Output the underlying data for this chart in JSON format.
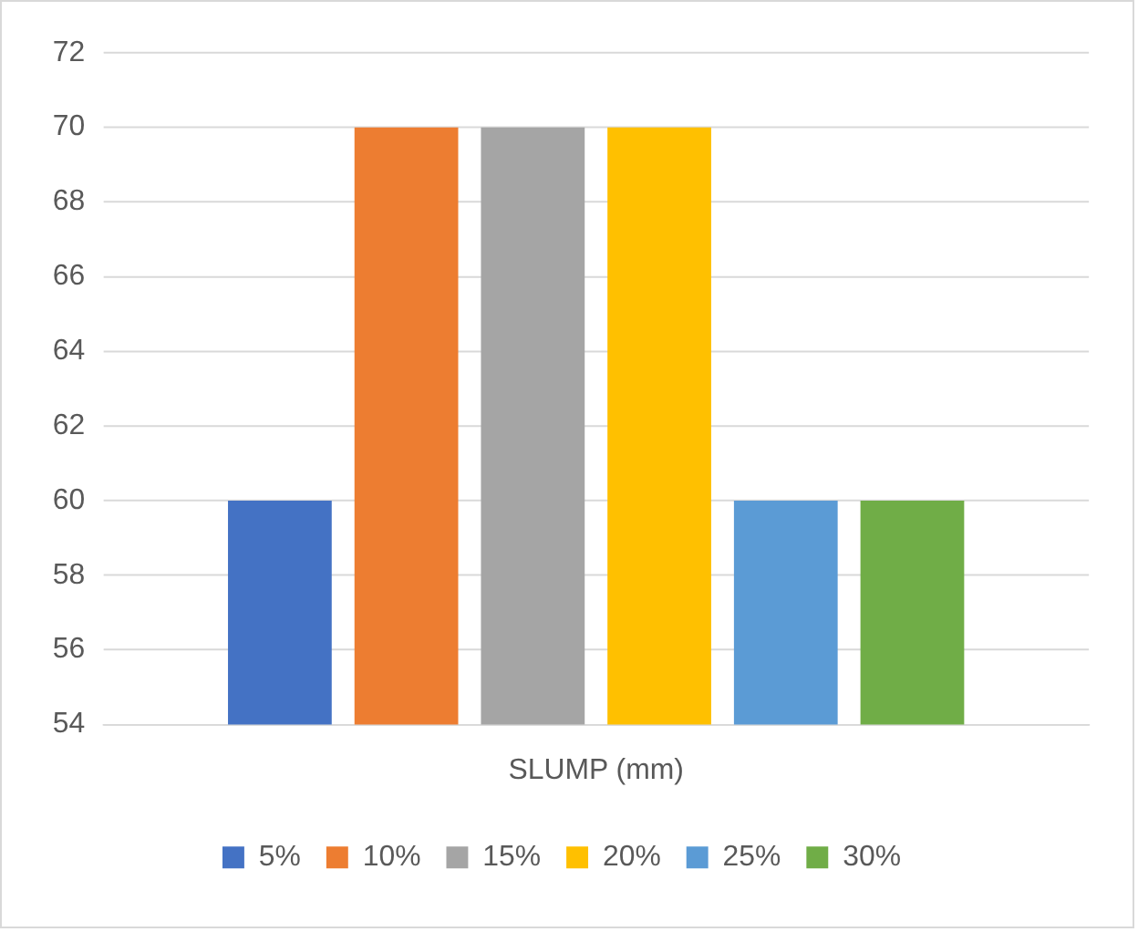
{
  "chart_data": {
    "type": "bar",
    "categories": [
      "SLUMP (mm)"
    ],
    "series": [
      {
        "name": "5%",
        "color": "#4472c4",
        "values": [
          60
        ]
      },
      {
        "name": "10%",
        "color": "#ed7d31",
        "values": [
          70
        ]
      },
      {
        "name": "15%",
        "color": "#a5a5a5",
        "values": [
          70
        ]
      },
      {
        "name": "20%",
        "color": "#ffc000",
        "values": [
          70
        ]
      },
      {
        "name": "25%",
        "color": "#5b9bd5",
        "values": [
          60
        ]
      },
      {
        "name": "30%",
        "color": "#70ad47",
        "values": [
          60
        ]
      }
    ],
    "ylim": [
      54,
      72
    ],
    "yticks": [
      54,
      56,
      58,
      60,
      62,
      64,
      66,
      68,
      70,
      72
    ],
    "grid": "y",
    "legend": "bottom"
  }
}
